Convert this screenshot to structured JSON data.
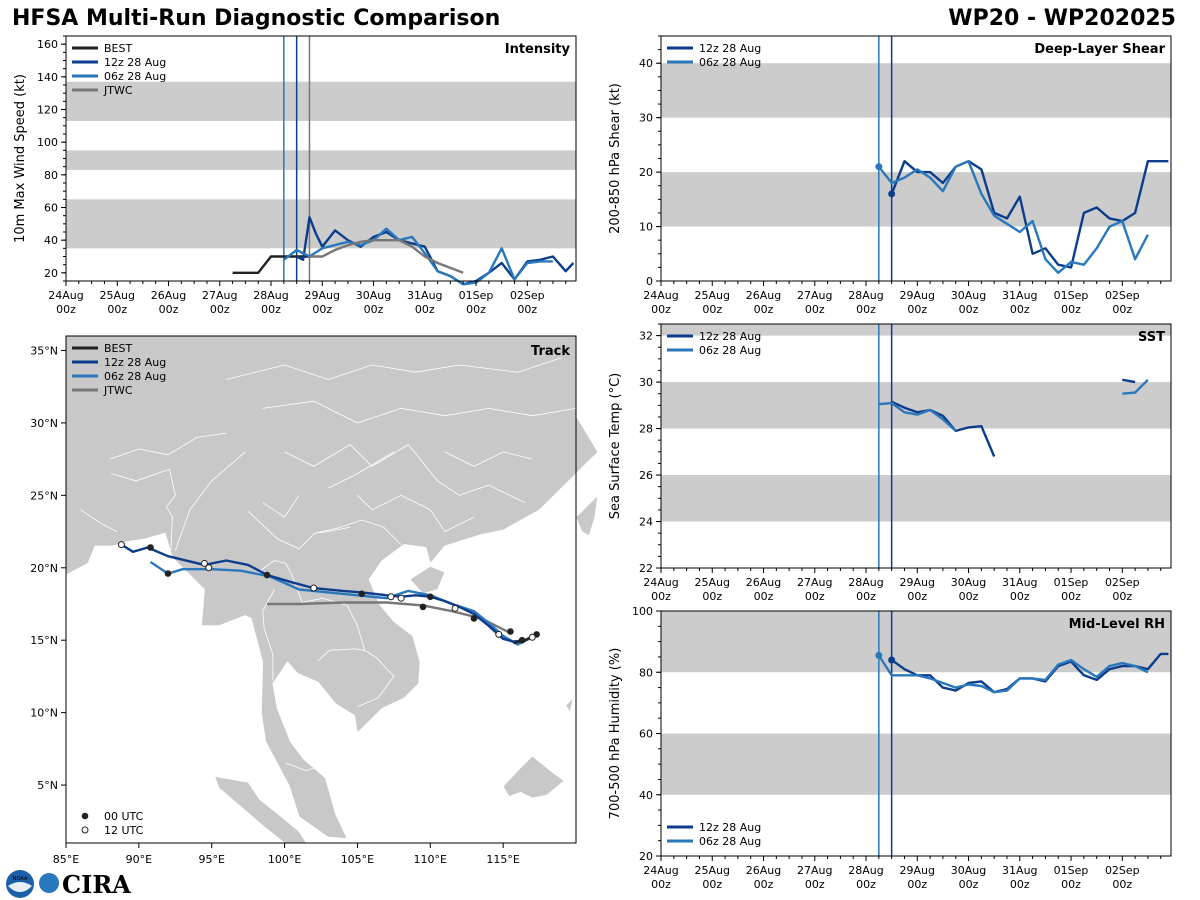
{
  "header": {
    "title_left": "HFSA Multi-Run Diagnostic Comparison",
    "title_right": "WP20 - WP202025"
  },
  "legend": {
    "best": "BEST",
    "run12": "12z 28 Aug",
    "run06": "06z 28 Aug",
    "jtwc": "JTWC",
    "utc00": "00 UTC",
    "utc12": "12 UTC"
  },
  "colors": {
    "best": "#222222",
    "run12": "#0c3d8c",
    "run06": "#2a78bc",
    "jtwc": "#777777",
    "band": "#cccccc",
    "land": "#c8c8c8",
    "border": "#ffffff"
  },
  "time_axis": {
    "days": [
      "24Aug",
      "25Aug",
      "26Aug",
      "27Aug",
      "28Aug",
      "29Aug",
      "30Aug",
      "31Aug",
      "01Sep",
      "02Sep"
    ],
    "hour_label": "00z",
    "vlines_day": [
      4.25,
      4.5,
      4.75
    ]
  },
  "logos": {
    "noaa": "NOAA",
    "cira": "CIRA"
  },
  "chart_data": [
    {
      "type": "line",
      "id": "intensity",
      "title": "Intensity",
      "ylabel": "10m Max Wind Speed (kt)",
      "ylim": [
        15,
        165
      ],
      "yticks": [
        20,
        40,
        60,
        80,
        100,
        120,
        140,
        160
      ],
      "bands": [
        [
          35,
          65
        ],
        [
          83,
          95
        ],
        [
          113,
          137
        ]
      ],
      "legend_items": [
        "BEST",
        "12z 28 Aug",
        "06z 28 Aug",
        "JTWC"
      ],
      "series": [
        {
          "name": "BEST",
          "color_key": "best",
          "x": [
            3.25,
            3.5,
            3.75,
            4.0,
            4.25,
            4.5,
            4.75
          ],
          "y": [
            20,
            20,
            20,
            30,
            30,
            30,
            30
          ]
        },
        {
          "name": "12z 28 Aug",
          "color_key": "run12",
          "x": [
            4.5,
            4.625,
            4.75,
            4.875,
            5.0,
            5.25,
            5.5,
            5.75,
            6.0,
            6.25,
            6.5,
            6.75,
            7.0,
            7.25,
            7.5,
            7.75,
            8.0,
            8.25,
            8.5,
            8.75,
            9.0,
            9.25,
            9.5,
            9.75,
            9.9
          ],
          "y": [
            30,
            28,
            54,
            44,
            36,
            46,
            40,
            36,
            42,
            45,
            40,
            38,
            36,
            21,
            18,
            13,
            15,
            20,
            26,
            16,
            27,
            28,
            30,
            21,
            26
          ]
        },
        {
          "name": "06z 28 Aug",
          "color_key": "run06",
          "x": [
            4.25,
            4.5,
            4.75,
            5.0,
            5.25,
            5.5,
            5.75,
            6.0,
            6.25,
            6.5,
            6.75,
            7.0,
            7.25,
            7.5,
            7.75,
            8.0,
            8.25,
            8.5,
            8.75,
            9.0,
            9.25,
            9.5
          ],
          "y": [
            28,
            34,
            30,
            35,
            37,
            39,
            37,
            40,
            47,
            40,
            42,
            32,
            21,
            18,
            13,
            14,
            20,
            35,
            16,
            26,
            27,
            27
          ]
        },
        {
          "name": "JTWC",
          "color_key": "jtwc",
          "x": [
            4.75,
            5.0,
            5.25,
            5.5,
            5.75,
            6.0,
            6.25,
            6.5,
            6.75,
            7.0,
            7.25,
            7.5,
            7.75
          ],
          "y": [
            30,
            30,
            34,
            37,
            39,
            40,
            40,
            40,
            36,
            30,
            26,
            23,
            20
          ]
        }
      ]
    },
    {
      "type": "line",
      "id": "shear",
      "title": "Deep-Layer Shear",
      "ylabel": "200-850 hPa Shear (kt)",
      "ylim": [
        0,
        45
      ],
      "yticks": [
        0,
        10,
        20,
        30,
        40
      ],
      "bands": [
        [
          10,
          20
        ],
        [
          30,
          40
        ]
      ],
      "legend_items": [
        "12z 28 Aug",
        "06z 28 Aug"
      ],
      "series": [
        {
          "name": "12z 28 Aug",
          "color_key": "run12",
          "x": [
            4.5,
            4.75,
            5.0,
            5.25,
            5.5,
            5.75,
            6.0,
            6.25,
            6.5,
            6.75,
            7.0,
            7.25,
            7.5,
            7.75,
            8.0,
            8.25,
            8.5,
            8.75,
            9.0,
            9.25,
            9.5,
            9.75,
            9.9
          ],
          "y": [
            16,
            22,
            20,
            20,
            18,
            21,
            22,
            20.5,
            12.5,
            11.5,
            15.5,
            5,
            6,
            3,
            2.5,
            12.5,
            13.5,
            11.5,
            11,
            12.5,
            22,
            22,
            22
          ]
        },
        {
          "name": "06z 28 Aug",
          "color_key": "run06",
          "x": [
            4.25,
            4.5,
            4.75,
            5.0,
            5.25,
            5.5,
            5.75,
            6.0,
            6.25,
            6.5,
            6.75,
            7.0,
            7.25,
            7.5,
            7.75,
            8.0,
            8.25,
            8.5,
            8.75,
            9.0,
            9.25,
            9.5
          ],
          "y": [
            21,
            18,
            19,
            20.5,
            19,
            16.5,
            21,
            22,
            16,
            12,
            10.5,
            9,
            11,
            4,
            1.5,
            3.5,
            3,
            6,
            10,
            11,
            4,
            8.5
          ]
        }
      ],
      "markers": [
        {
          "x": 4.25,
          "y": 21,
          "color_key": "run06"
        },
        {
          "x": 4.5,
          "y": 16,
          "color_key": "run12"
        }
      ]
    },
    {
      "type": "line",
      "id": "sst",
      "title": "SST",
      "ylabel": "Sea Surface Temp (°C)",
      "ylim": [
        22,
        32.5
      ],
      "yticks": [
        22,
        24,
        26,
        28,
        30,
        32
      ],
      "bands": [
        [
          24,
          26
        ],
        [
          28,
          30
        ],
        [
          32,
          32.5
        ]
      ],
      "legend_items": [
        "12z 28 Aug",
        "06z 28 Aug"
      ],
      "series": [
        {
          "name": "12z 28 Aug",
          "color_key": "run12",
          "x": [
            4.5,
            4.75,
            5.0,
            5.25,
            5.5,
            5.75,
            6.0,
            6.25,
            6.5
          ],
          "y": [
            29.15,
            28.9,
            28.7,
            28.8,
            28.55,
            27.9,
            28.05,
            28.1,
            26.8
          ]
        },
        {
          "name": "12z 28 Aug",
          "color_key": "run12",
          "x": [
            9.0,
            9.25
          ],
          "y": [
            30.1,
            30.0
          ]
        },
        {
          "name": "06z 28 Aug",
          "color_key": "run06",
          "x": [
            4.25,
            4.5,
            4.75,
            5.0,
            5.25,
            5.5,
            5.75
          ],
          "y": [
            29.05,
            29.1,
            28.7,
            28.6,
            28.8,
            28.4,
            27.9
          ]
        },
        {
          "name": "06z 28 Aug",
          "color_key": "run06",
          "x": [
            9.0,
            9.25,
            9.5
          ],
          "y": [
            29.5,
            29.55,
            30.1
          ]
        }
      ]
    },
    {
      "type": "line",
      "id": "rh",
      "title": "Mid-Level RH",
      "ylabel": "700-500 hPa Humidity (%)",
      "ylim": [
        20,
        100
      ],
      "yticks": [
        20,
        40,
        60,
        80,
        100
      ],
      "bands": [
        [
          40,
          60
        ],
        [
          80,
          100
        ]
      ],
      "legend_items": [
        "12z 28 Aug",
        "06z 28 Aug"
      ],
      "series": [
        {
          "name": "12z 28 Aug",
          "color_key": "run12",
          "x": [
            4.5,
            4.75,
            5.0,
            5.25,
            5.5,
            5.75,
            6.0,
            6.25,
            6.5,
            6.75,
            7.0,
            7.25,
            7.5,
            7.75,
            8.0,
            8.25,
            8.5,
            8.75,
            9.0,
            9.25,
            9.5,
            9.75,
            9.9
          ],
          "y": [
            84,
            81,
            79,
            79,
            75,
            74,
            76.5,
            77,
            73.5,
            74.5,
            78,
            78,
            77,
            82,
            83.5,
            79,
            77.5,
            81,
            82,
            82,
            81,
            86,
            86
          ]
        },
        {
          "name": "06z 28 Aug",
          "color_key": "run06",
          "x": [
            4.25,
            4.5,
            4.75,
            5.0,
            5.25,
            5.5,
            5.75,
            6.0,
            6.25,
            6.5,
            6.75,
            7.0,
            7.25,
            7.5,
            7.75,
            8.0,
            8.25,
            8.5,
            8.75,
            9.0,
            9.25,
            9.5
          ],
          "y": [
            85.5,
            79,
            79,
            79,
            78,
            76.5,
            75,
            76,
            75.5,
            73.5,
            74,
            78,
            78,
            77.5,
            82.5,
            84,
            81,
            78.5,
            82,
            83,
            82,
            80
          ]
        }
      ],
      "markers": [
        {
          "x": 4.25,
          "y": 85.5,
          "color_key": "run06"
        },
        {
          "x": 4.5,
          "y": 84,
          "color_key": "run12"
        }
      ]
    },
    {
      "type": "scatter",
      "id": "track",
      "title": "Track",
      "xlim": [
        85,
        120
      ],
      "ylim": [
        1,
        36
      ],
      "xticks": [
        85,
        90,
        95,
        100,
        105,
        110,
        115
      ],
      "xtick_labels": [
        "85°E",
        "90°E",
        "95°E",
        "100°E",
        "105°E",
        "110°E",
        "115°E"
      ],
      "yticks": [
        5,
        10,
        15,
        20,
        25,
        30,
        35
      ],
      "ytick_labels": [
        "5°N",
        "10°N",
        "15°N",
        "20°N",
        "25°N",
        "30°N",
        "35°N"
      ],
      "legend_items": [
        "BEST",
        "12z 28 Aug",
        "06z 28 Aug",
        "JTWC"
      ],
      "series": [
        {
          "name": "BEST",
          "color_key": "best",
          "lon": [
            117.3,
            116.5,
            115.7
          ],
          "lat": [
            15.4,
            15.0,
            14.8
          ]
        },
        {
          "name": "12z 28 Aug",
          "color_key": "run12",
          "lon": [
            117.3,
            116.5,
            115.7,
            115.0,
            114.0,
            113.0,
            112.0,
            111.0,
            110.0,
            109.0,
            108.0,
            107.0,
            105.3,
            104.0,
            102.0,
            100.5,
            98.8,
            97.5,
            96.0,
            94.5,
            92.0,
            90.6,
            89.6,
            88.8
          ],
          "lat": [
            15.4,
            15.0,
            14.9,
            15.1,
            16.0,
            16.8,
            17.3,
            17.7,
            18.0,
            18.1,
            18.0,
            18.1,
            18.3,
            18.4,
            18.6,
            19.0,
            19.5,
            20.2,
            20.5,
            20.2,
            20.8,
            21.4,
            21.1,
            21.6
          ]
        },
        {
          "name": "06z 28 Aug",
          "color_key": "run06",
          "lon": [
            117.0,
            116.0,
            115.0,
            114.0,
            113.0,
            111.5,
            110.0,
            108.5,
            107.0,
            105.0,
            103.0,
            101.0,
            99.0,
            97.0,
            95.0,
            93.0,
            92.0,
            90.8
          ],
          "lat": [
            15.2,
            14.7,
            15.3,
            16.2,
            17.0,
            17.5,
            18.1,
            18.4,
            17.9,
            18.1,
            18.3,
            18.5,
            19.4,
            19.8,
            19.9,
            19.9,
            19.6,
            20.4
          ]
        },
        {
          "name": "JTWC",
          "color_key": "jtwc",
          "lon": [
            115.5,
            113.5,
            111.5,
            109.5,
            107.0,
            104.0,
            101.0,
            98.8
          ],
          "lat": [
            15.5,
            16.5,
            17.0,
            17.4,
            17.6,
            17.6,
            17.5,
            17.5
          ]
        }
      ],
      "markers_00utc": [
        {
          "lon": 117.3,
          "lat": 15.4
        },
        {
          "lon": 116.3,
          "lat": 15.0
        },
        {
          "lon": 113.0,
          "lat": 16.5
        },
        {
          "lon": 110.0,
          "lat": 18.0
        },
        {
          "lon": 105.3,
          "lat": 18.2
        },
        {
          "lon": 98.8,
          "lat": 19.5
        },
        {
          "lon": 92.0,
          "lat": 19.6
        },
        {
          "lon": 90.8,
          "lat": 21.4
        },
        {
          "lon": 109.5,
          "lat": 17.3
        },
        {
          "lon": 115.5,
          "lat": 15.6
        }
      ],
      "markers_12utc": [
        {
          "lon": 117.0,
          "lat": 15.2
        },
        {
          "lon": 114.7,
          "lat": 15.4
        },
        {
          "lon": 111.7,
          "lat": 17.2
        },
        {
          "lon": 108.0,
          "lat": 17.9
        },
        {
          "lon": 107.3,
          "lat": 18.0
        },
        {
          "lon": 102.0,
          "lat": 18.6
        },
        {
          "lon": 94.8,
          "lat": 20.0
        },
        {
          "lon": 94.5,
          "lat": 20.3
        },
        {
          "lon": 88.8,
          "lat": 21.6
        }
      ]
    }
  ]
}
